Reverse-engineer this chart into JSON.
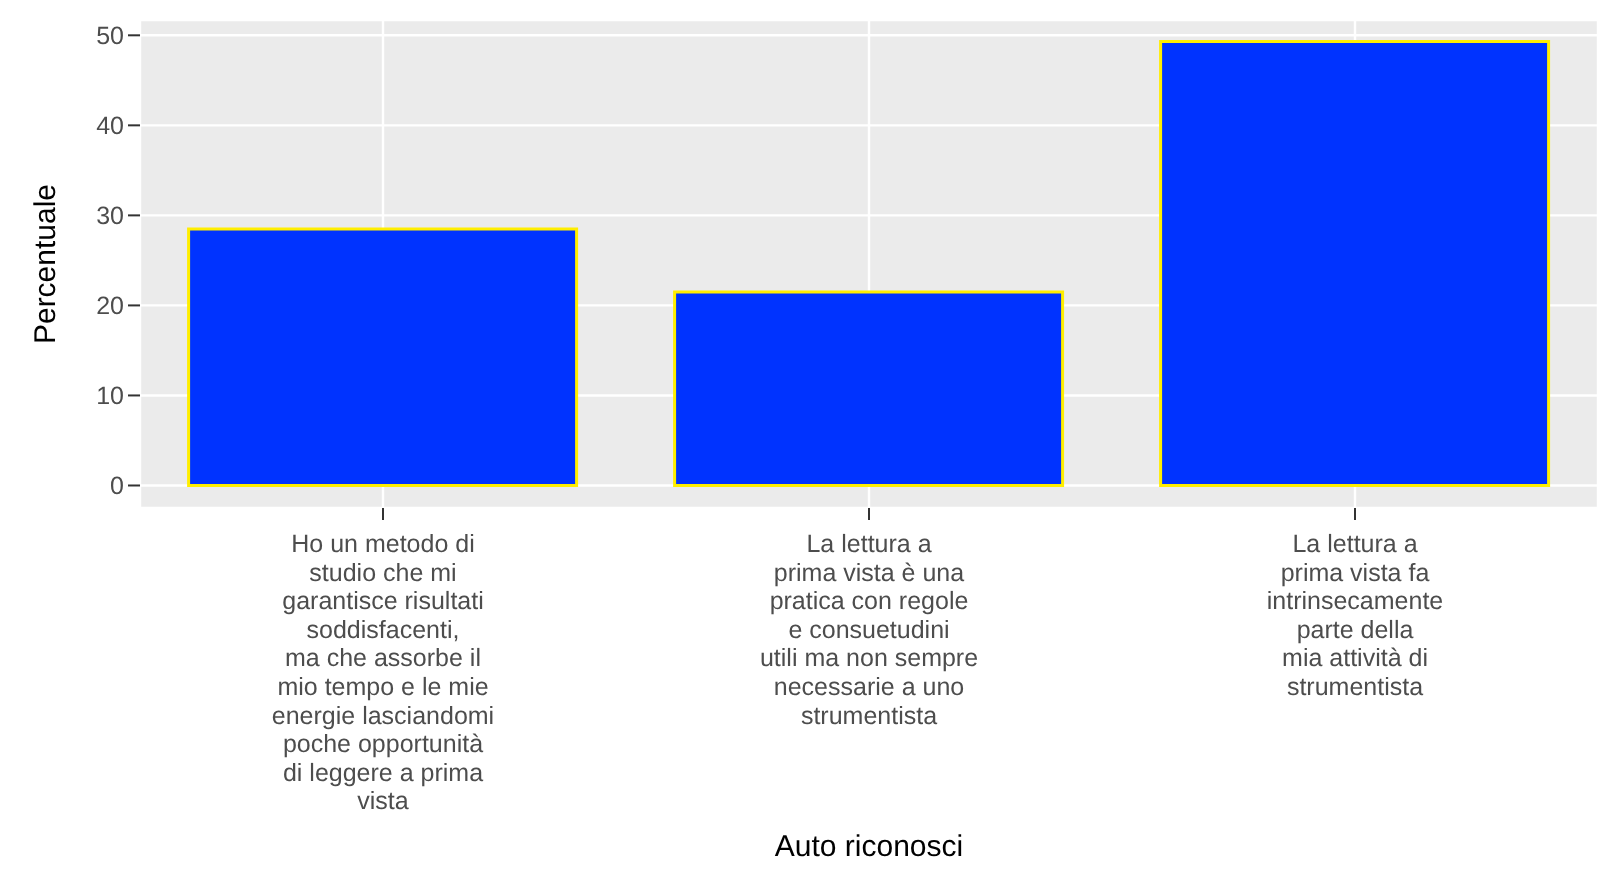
{
  "chart_data": {
    "type": "bar",
    "xlabel": "Auto  riconosci",
    "ylabel": "Percentuale",
    "categories": [
      "Ho un metodo di\nstudio che mi\ngarantisce risultati\nsoddisfacenti,\nma che assorbe il\nmio tempo e le mie\nenergie lasciandomi\npoche opportunità\ndi leggere a prima\nvista",
      "La lettura a\nprima vista è una\npratica con regole\ne consuetudini\nutili ma non sempre\nnecessarie a uno\nstrumentista",
      "La lettura a\nprima vista fa\nintrinsecamente\nparte della\nmia attività di\nstrumentista"
    ],
    "values": [
      28.5,
      21.5,
      49.3
    ],
    "color": "#0033ff",
    "ylim": [
      -2.5,
      51.7
    ],
    "yticks": [
      0,
      10,
      20,
      30,
      40,
      50
    ],
    "grid": true
  }
}
